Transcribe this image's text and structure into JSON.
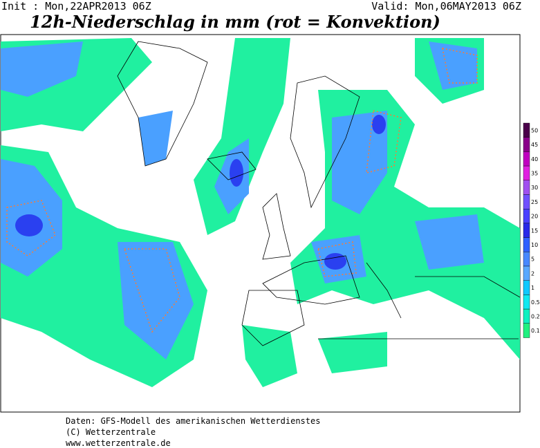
{
  "header": {
    "init": "Init : Mon,22APR2013 06Z",
    "valid": "Valid: Mon,06MAY2013 06Z",
    "title": "12h-Niederschlag in mm (rot = Konvektion)"
  },
  "legend": {
    "levels": [
      {
        "label": 50,
        "color": "#4a004a"
      },
      {
        "label": 45,
        "color": "#8a008a"
      },
      {
        "label": 40,
        "color": "#c000c0"
      },
      {
        "label": 35,
        "color": "#e020e0"
      },
      {
        "label": 30,
        "color": "#a050f0"
      },
      {
        "label": 25,
        "color": "#7050ff"
      },
      {
        "label": 20,
        "color": "#4a40ff"
      },
      {
        "label": 15,
        "color": "#2828e8"
      },
      {
        "label": 10,
        "color": "#3060ff"
      },
      {
        "label": 5,
        "color": "#4888ff"
      },
      {
        "label": 2,
        "color": "#5aa8ff"
      },
      {
        "label": 1,
        "color": "#10c8ff"
      },
      {
        "label": 0.5,
        "color": "#10e8f0"
      },
      {
        "label": 0.2,
        "color": "#10f0c0"
      },
      {
        "label": 0.1,
        "color": "#20f080"
      }
    ]
  },
  "footer": {
    "line1": "Daten: GFS-Modell des amerikanischen Wetterdienstes",
    "line2": "(C) Wetterzentrale",
    "line3": "www.wetterzentrale.de"
  }
}
